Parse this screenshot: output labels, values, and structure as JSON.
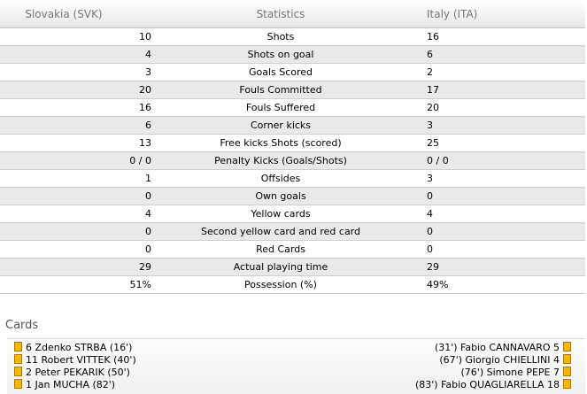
{
  "header": {
    "home": "Slovakia (SVK)",
    "middle": "Statistics",
    "away": "Italy (ITA)"
  },
  "stats": [
    {
      "home": "10",
      "label": "Shots",
      "away": "16"
    },
    {
      "home": "4",
      "label": "Shots on goal",
      "away": "6"
    },
    {
      "home": "3",
      "label": "Goals Scored",
      "away": "2"
    },
    {
      "home": "20",
      "label": "Fouls Committed",
      "away": "17"
    },
    {
      "home": "16",
      "label": "Fouls Suffered",
      "away": "20"
    },
    {
      "home": "6",
      "label": "Corner kicks",
      "away": "3"
    },
    {
      "home": "13",
      "label": "Free kicks Shots (scored)",
      "away": "25"
    },
    {
      "home": "0 / 0",
      "label": "Penalty Kicks (Goals/Shots)",
      "away": "0 / 0"
    },
    {
      "home": "1",
      "label": "Offsides",
      "away": "3"
    },
    {
      "home": "0",
      "label": "Own goals",
      "away": "0"
    },
    {
      "home": "4",
      "label": "Yellow cards",
      "away": "4"
    },
    {
      "home": "0",
      "label": "Second yellow card and red card",
      "away": "0"
    },
    {
      "home": "0",
      "label": "Red Cards",
      "away": "0"
    },
    {
      "home": "29",
      "label": "Actual playing time",
      "away": "29"
    },
    {
      "home": "51%",
      "label": "Possession (%)",
      "away": "49%"
    }
  ],
  "cards": {
    "title": "Cards",
    "home": [
      "6 Zdenko STRBA (16')",
      "11 Robert VITTEK (40')",
      "2 Peter PEKARIK (50')",
      "1 Jan MUCHA (82')"
    ],
    "away": [
      "(31') Fabio CANNAVARO 5",
      "(67') Giorgio CHIELLINI 4",
      "(76') Simone PEPE 7",
      "(83') Fabio QUAGLIARELLA 18"
    ],
    "card_color": "#f5b800"
  }
}
